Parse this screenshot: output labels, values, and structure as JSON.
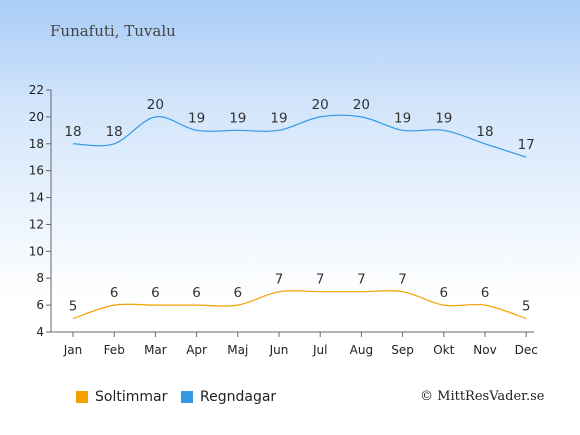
{
  "chart_data": {
    "type": "line",
    "title": "Funafuti, Tuvalu",
    "categories": [
      "Jan",
      "Feb",
      "Mar",
      "Apr",
      "Maj",
      "Jun",
      "Jul",
      "Aug",
      "Sep",
      "Okt",
      "Nov",
      "Dec"
    ],
    "series": [
      {
        "name": "Soltimmar",
        "color": "#f5a000",
        "values": [
          5,
          6,
          6,
          6,
          6,
          7,
          7,
          7,
          7,
          6,
          6,
          5
        ]
      },
      {
        "name": "Regndagar",
        "color": "#3399e6",
        "values": [
          18,
          18,
          20,
          19,
          19,
          19,
          20,
          20,
          19,
          19,
          18,
          17
        ]
      }
    ],
    "ylim": [
      4,
      22
    ],
    "yticks": [
      4,
      6,
      8,
      10,
      12,
      14,
      16,
      18,
      20,
      22
    ],
    "grid": false,
    "legend_position": "bottom"
  },
  "credit": "© MittResVader.se"
}
